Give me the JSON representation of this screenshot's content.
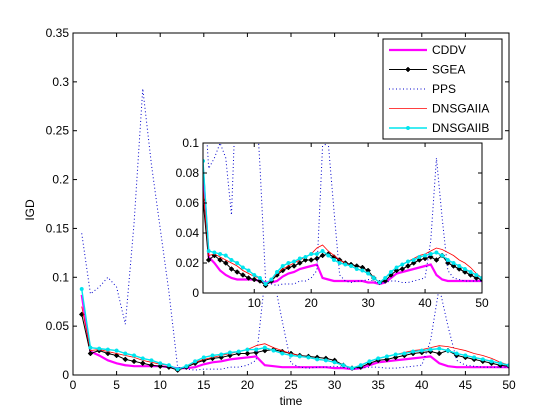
{
  "chart_data": [
    {
      "type": "line",
      "title": "",
      "xlabel": "time",
      "ylabel": "IGD",
      "xlim": [
        0,
        50
      ],
      "ylim": [
        0,
        0.35
      ],
      "xticks": [
        "0",
        "5",
        "10",
        "15",
        "20",
        "25",
        "30",
        "35",
        "40",
        "45",
        "50"
      ],
      "yticks": [
        "0",
        "0.05",
        "0.1",
        "0.15",
        "0.2",
        "0.25",
        "0.3",
        "0.35"
      ],
      "grid": false,
      "legend": "top-right",
      "x": [
        1,
        2,
        3,
        4,
        5,
        6,
        7,
        8,
        9,
        10,
        11,
        12,
        13,
        14,
        15,
        16,
        17,
        18,
        19,
        20,
        21,
        22,
        23,
        24,
        25,
        26,
        27,
        28,
        29,
        30,
        31,
        32,
        33,
        34,
        35,
        36,
        37,
        38,
        39,
        40,
        41,
        42,
        43,
        44,
        45,
        46,
        47,
        48,
        49,
        50
      ],
      "series": [
        {
          "name": "CDDV",
          "color": "#ff00ff",
          "style": "solid-thick",
          "values": [
            0.082,
            0.024,
            0.02,
            0.015,
            0.012,
            0.01,
            0.009,
            0.009,
            0.009,
            0.009,
            0.008,
            0.007,
            0.007,
            0.008,
            0.011,
            0.013,
            0.014,
            0.016,
            0.017,
            0.018,
            0.019,
            0.01,
            0.009,
            0.008,
            0.008,
            0.008,
            0.008,
            0.008,
            0.008,
            0.007,
            0.007,
            0.006,
            0.007,
            0.01,
            0.013,
            0.014,
            0.015,
            0.016,
            0.017,
            0.018,
            0.019,
            0.012,
            0.009,
            0.008,
            0.008,
            0.008,
            0.008,
            0.008,
            0.008,
            0.008
          ]
        },
        {
          "name": "SGEA",
          "color": "#000000",
          "style": "solid-diamond",
          "values": [
            0.062,
            0.022,
            0.025,
            0.022,
            0.02,
            0.016,
            0.014,
            0.012,
            0.01,
            0.009,
            0.008,
            0.005,
            0.008,
            0.012,
            0.015,
            0.017,
            0.018,
            0.02,
            0.022,
            0.022,
            0.023,
            0.025,
            0.026,
            0.024,
            0.022,
            0.02,
            0.019,
            0.018,
            0.017,
            0.015,
            0.01,
            0.007,
            0.008,
            0.012,
            0.015,
            0.016,
            0.018,
            0.02,
            0.022,
            0.023,
            0.024,
            0.022,
            0.025,
            0.02,
            0.018,
            0.016,
            0.014,
            0.012,
            0.01,
            0.009
          ]
        },
        {
          "name": "PPS",
          "color": "#0000cc",
          "style": "dotted",
          "values": [
            0.145,
            0.083,
            0.09,
            0.1,
            0.09,
            0.052,
            0.155,
            0.293,
            0.215,
            0.15,
            0.085,
            0.008,
            0.006,
            0.005,
            0.006,
            0.006,
            0.006,
            0.008,
            0.008,
            0.01,
            0.015,
            0.098,
            0.1,
            0.055,
            0.012,
            0.008,
            0.007,
            0.008,
            0.008,
            0.009,
            0.008,
            0.006,
            0.007,
            0.008,
            0.008,
            0.007,
            0.007,
            0.008,
            0.009,
            0.01,
            0.035,
            0.09,
            0.05,
            0.015,
            0.01,
            0.009,
            0.008,
            0.008,
            0.008,
            0.008
          ]
        },
        {
          "name": "DNSGAIIA",
          "color": "#ff0000",
          "style": "solid-thin",
          "values": [
            0.07,
            0.025,
            0.026,
            0.024,
            0.022,
            0.02,
            0.018,
            0.015,
            0.013,
            0.011,
            0.01,
            0.006,
            0.009,
            0.013,
            0.016,
            0.018,
            0.02,
            0.022,
            0.024,
            0.026,
            0.03,
            0.032,
            0.028,
            0.025,
            0.022,
            0.02,
            0.018,
            0.016,
            0.015,
            0.013,
            0.01,
            0.007,
            0.01,
            0.014,
            0.017,
            0.019,
            0.021,
            0.023,
            0.025,
            0.026,
            0.028,
            0.03,
            0.029,
            0.027,
            0.025,
            0.022,
            0.02,
            0.017,
            0.013,
            0.01
          ]
        },
        {
          "name": "DNSGAIIB",
          "color": "#00e5ee",
          "style": "solid-star",
          "values": [
            0.088,
            0.028,
            0.027,
            0.026,
            0.025,
            0.022,
            0.02,
            0.017,
            0.015,
            0.012,
            0.01,
            0.006,
            0.009,
            0.014,
            0.018,
            0.02,
            0.021,
            0.023,
            0.024,
            0.026,
            0.026,
            0.028,
            0.025,
            0.022,
            0.02,
            0.019,
            0.018,
            0.016,
            0.015,
            0.013,
            0.01,
            0.007,
            0.01,
            0.014,
            0.017,
            0.019,
            0.021,
            0.022,
            0.024,
            0.025,
            0.026,
            0.027,
            0.025,
            0.022,
            0.02,
            0.018,
            0.016,
            0.014,
            0.012,
            0.01
          ]
        }
      ]
    },
    {
      "type": "line",
      "title": "",
      "xlim": [
        1,
        50
      ],
      "ylim": [
        0,
        0.1
      ],
      "xticks": [
        "10",
        "20",
        "30",
        "40",
        "50"
      ],
      "yticks": [
        "0",
        "0.02",
        "0.04",
        "0.06",
        "0.08",
        "0.1"
      ],
      "grid": false,
      "note": "inset: zoom of main plot, same series"
    }
  ]
}
